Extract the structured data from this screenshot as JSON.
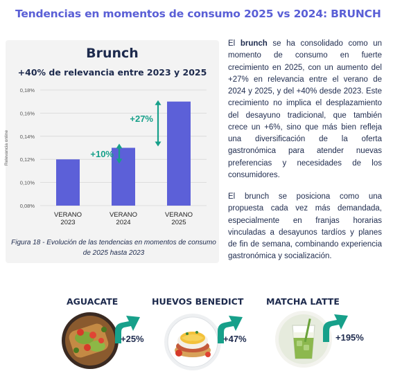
{
  "page": {
    "title": "Tendencias en momentos de consumo 2025 vs 2024: BRUNCH"
  },
  "chart": {
    "title": "Brunch",
    "subtitle": "+40% de relevancia entre 2023 y 2025",
    "caption": "Figura 18 - Evolución de las tendencias en momentos de consumo de 2025 hasta 2023"
  },
  "chart_data": {
    "type": "bar",
    "categories": [
      [
        "VERANO",
        "2023"
      ],
      [
        "VERANO",
        "2024"
      ],
      [
        "VERANO",
        "2025"
      ]
    ],
    "values": [
      0.12,
      0.13,
      0.17
    ],
    "ylabel": "Relevancia online",
    "ylim": [
      0.08,
      0.18
    ],
    "yticks": [
      0.08,
      0.1,
      0.12,
      0.14,
      0.16,
      0.18
    ],
    "ytick_labels": [
      "0,08%",
      "0,10%",
      "0,12%",
      "0,14%",
      "0,16%",
      "0,18%"
    ],
    "annotations": [
      {
        "label": "+10%",
        "from": 0.12,
        "to": 0.13
      },
      {
        "label": "+27%",
        "from": 0.13,
        "to": 0.17
      }
    ],
    "grid": true,
    "bar_color": "#5c60d8",
    "annotation_color": "#17a08a"
  },
  "text": {
    "p1_pre": "El ",
    "p1_bold": "brunch",
    "p1_post": " se ha consolidado como un momento de consumo en fuerte crecimiento en 2025, con un aumento del +27% en relevancia entre el verano de 2024 y 2025, y del +40% desde 2023. Este crecimiento no implica el desplazamiento del desayuno tradicional, que también crece un +6%, sino que más bien refleja una diversificación de la oferta gastronómica para atender nuevas preferencias y necesidades de los consumidores.",
    "p2": "El brunch se posiciona como una propuesta cada vez más demandada, especialmente en franjas horarias vinculadas a desayunos tardíos y planes de fin de semana, combinando experiencia gastronómica y socialización."
  },
  "products": [
    {
      "name": "AGUACATE",
      "change": "+25%",
      "photo": "avocado-toast"
    },
    {
      "name": "HUEVOS BENEDICT",
      "change": "+47%",
      "photo": "eggs-benedict"
    },
    {
      "name": "MATCHA LATTE",
      "change": "+195%",
      "photo": "matcha-latte"
    }
  ],
  "colors": {
    "title": "#5a5fd6",
    "text": "#1d2a4d",
    "growth_arrow": "#17a08a"
  }
}
